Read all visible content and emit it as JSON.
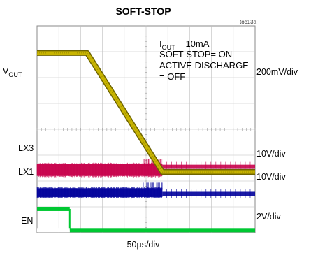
{
  "chart_data": {
    "type": "line",
    "title": "SOFT-STOP",
    "figure_tag": "toc13a",
    "xlabel": "50µs/div",
    "grid": true,
    "divisions": {
      "x": 10,
      "y": 8
    },
    "annotation": {
      "iout_main": "I",
      "iout_sub": "OUT",
      "iout_value": " = 10mA",
      "line2": "SOFT-STOP= ON",
      "line3": "ACTIVE DISCHARGE",
      "line4": "= OFF"
    },
    "channels": [
      {
        "name": "VOUT",
        "label_main": "V",
        "label_sub": "OUT",
        "scale": "200mV/div",
        "color": "#c8b400",
        "points_div": [
          [
            0,
            6.95
          ],
          [
            2.3,
            6.95
          ],
          [
            5.75,
            2.35
          ],
          [
            10,
            2.35
          ]
        ]
      },
      {
        "name": "LX3",
        "label": "LX3",
        "scale": "10V/div",
        "color": "#c8004b",
        "switching_until_div": 5.75,
        "high_level_div": 2.65,
        "low_level_div": 2.2,
        "idle_level_div": 2.55
      },
      {
        "name": "LX1",
        "label": "LX1",
        "scale": "10V/div",
        "color": "#00009b",
        "switching_until_div": 5.75,
        "high_level_div": 1.72,
        "low_level_div": 1.38,
        "idle_level_div": 1.5
      },
      {
        "name": "EN",
        "label": "EN",
        "scale": "2V/div",
        "color": "#00c832",
        "high_level_div": 0.92,
        "low_level_div": 0.1,
        "fall_at_div": 1.5
      }
    ]
  }
}
